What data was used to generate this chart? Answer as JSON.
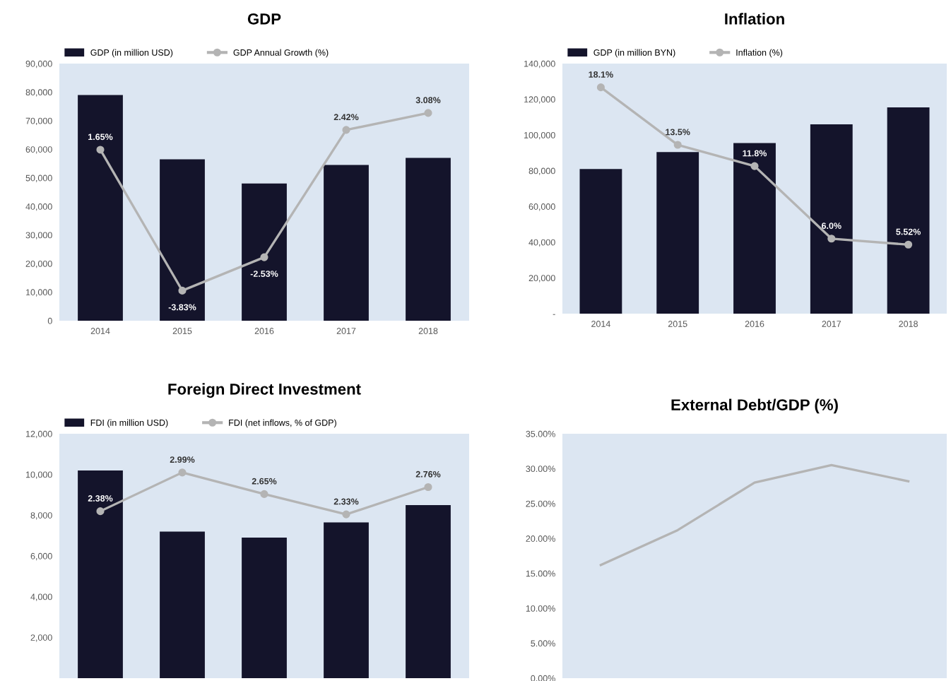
{
  "chart_data": [
    {
      "type": "bar",
      "title": "GDP",
      "categories": [
        "2014",
        "2015",
        "2016",
        "2017",
        "2018"
      ],
      "series": [
        {
          "name": "GDP (in million USD)",
          "color": "#14142b",
          "values": [
            79000,
            56500,
            48000,
            54500,
            57000
          ]
        },
        {
          "name": "GDP Annual Growth (%)",
          "type": "line",
          "axis": "y2",
          "color": "#b4b4b4",
          "marker": "circle",
          "line_style": "solid",
          "values": [
            1.65,
            -3.83,
            -2.53,
            2.42,
            3.08
          ],
          "value_labels": [
            "1.65%",
            "-3.83%",
            "-2.53%",
            "2.42%",
            "3.08%"
          ]
        }
      ],
      "ylim": [
        0,
        90000
      ],
      "yticks": [
        0,
        {
          "value": 10000,
          "label": "10,000"
        },
        {
          "value": 20000,
          "label": "20,000"
        },
        {
          "value": 30000,
          "label": "30,000"
        },
        {
          "value": 40000,
          "label": "40,000"
        },
        {
          "value": 50000,
          "label": "50,000"
        },
        {
          "value": 60000,
          "label": "60,000"
        },
        {
          "value": 70000,
          "label": "70,000"
        },
        {
          "value": 80000,
          "label": "80,000"
        },
        {
          "value": 90000,
          "label": "90,000"
        }
      ],
      "y2lim": [
        -5,
        5
      ],
      "tick_labels": "xy",
      "legend": "top left"
    },
    {
      "type": "bar",
      "title": "Inflation",
      "categories": [
        "2014",
        "2015",
        "2016",
        "2017",
        "2018"
      ],
      "series": [
        {
          "name": "GDP (in million BYN)",
          "color": "#14142b",
          "values": [
            81000,
            90500,
            95500,
            106000,
            115500
          ]
        },
        {
          "name": "Inflation (%)",
          "type": "line",
          "axis": "y2",
          "color": "#b4b4b4",
          "marker": "circle",
          "line_style": "solid",
          "values": [
            18.1,
            13.5,
            11.8,
            6.0,
            5.52
          ],
          "value_labels": [
            "18.1%",
            "13.5%",
            "11.8%",
            "6.0%",
            "5.52%"
          ]
        }
      ],
      "ylim": [
        0,
        140000
      ],
      "yticks": [
        {
          "value": 0,
          "label": "-"
        },
        {
          "value": 20000,
          "label": "20,000"
        },
        {
          "value": 40000,
          "label": "40,000"
        },
        {
          "value": 60000,
          "label": "60,000"
        },
        {
          "value": 80000,
          "label": "80,000"
        },
        {
          "value": 100000,
          "label": "100,000"
        },
        {
          "value": 120000,
          "label": "120,000"
        },
        {
          "value": 140000,
          "label": "140,000"
        }
      ],
      "y2lim": [
        0,
        20
      ],
      "tick_labels": "xy",
      "legend": "top left"
    },
    {
      "type": "bar",
      "title": "Foreign Direct Investment",
      "categories": [
        null,
        null,
        null,
        null,
        null
      ],
      "series": [
        {
          "name": "FDI (in million USD)",
          "color": "#14142b",
          "values": [
            10200,
            7200,
            6900,
            7650,
            8500
          ]
        },
        {
          "name": "FDI (net inflows, % of GDP)",
          "type": "line",
          "axis": "y2",
          "color": "#b4b4b4",
          "marker": "circle",
          "line_style": "solid",
          "values": [
            2.38,
            2.99,
            2.65,
            2.33,
            2.76
          ],
          "value_labels": [
            "2.38%",
            "2.99%",
            "2.65%",
            "2.33%",
            "2.76%"
          ]
        }
      ],
      "ylim": [
        0,
        12000
      ],
      "yticks": [
        {
          "value": 2000,
          "label": "2,000"
        },
        {
          "value": 4000,
          "label": "4,000"
        },
        {
          "value": 6000,
          "label": "6,000"
        },
        {
          "value": 8000,
          "label": "8,000"
        },
        {
          "value": 10000,
          "label": "10,000"
        },
        {
          "value": 12000,
          "label": "12,000"
        }
      ],
      "y2lim": [
        -0.25,
        3.6
      ],
      "tick_labels": "y",
      "legend": "top left"
    },
    {
      "type": "line",
      "title": "External Debt/GDP (%)",
      "categories": [
        null,
        null,
        null,
        null,
        null
      ],
      "series": [
        {
          "color": "#b4b4b4",
          "values": [
            16.2,
            21.2,
            28.0,
            30.5,
            28.2
          ]
        }
      ],
      "ylim": [
        0,
        35
      ],
      "yticks": [
        {
          "value": 0,
          "label": "0.00%"
        },
        {
          "value": 5,
          "label": "5.00%"
        },
        {
          "value": 10,
          "label": "10.00%"
        },
        {
          "value": 15,
          "label": "15.00%"
        },
        {
          "value": 20,
          "label": "20.00%"
        },
        {
          "value": 25,
          "label": "25.00%"
        },
        {
          "value": 30,
          "label": "30.00%"
        },
        {
          "value": 35,
          "label": "35.00%"
        }
      ],
      "tick_labels": "y",
      "marker": "none",
      "line_style": "solid"
    }
  ]
}
